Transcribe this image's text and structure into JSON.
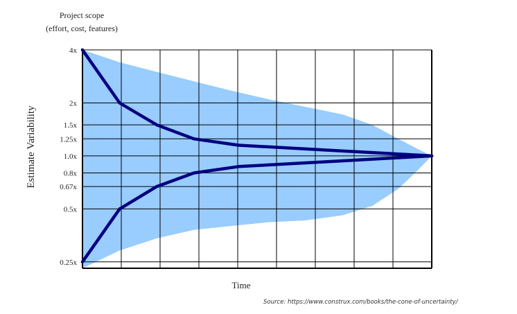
{
  "chart_data": {
    "type": "line",
    "title": "Project scope",
    "subtitle": "(effort, cost, features)",
    "xlabel": "Time",
    "ylabel": "Estimate Variability",
    "y_scale": "log",
    "ylim": [
      0.23,
      4.0
    ],
    "xlim": [
      0,
      9.4
    ],
    "y_ticks": [
      {
        "label": "4x",
        "value": 4.0
      },
      {
        "label": "2x",
        "value": 2.0
      },
      {
        "label": "1.5x",
        "value": 1.5
      },
      {
        "label": "1.25x",
        "value": 1.25
      },
      {
        "label": "1.0x",
        "value": 1.0
      },
      {
        "label": "0.8x",
        "value": 0.8
      },
      {
        "label": "0.67x",
        "value": 0.67
      },
      {
        "label": "0.5x",
        "value": 0.5
      },
      {
        "label": "0.25x",
        "value": 0.25
      }
    ],
    "x_gridlines": 9,
    "grid": true,
    "colors": {
      "envelope": "#99ccff",
      "line": "#000080",
      "grid": "#000000"
    },
    "series": [
      {
        "key": "upper",
        "x": [
          0,
          1,
          2,
          3,
          4.2,
          9.4
        ],
        "values": [
          4.0,
          2.0,
          1.5,
          1.25,
          1.15,
          1.0
        ]
      },
      {
        "key": "lower",
        "x": [
          0,
          1,
          2,
          3,
          4.2,
          9.4
        ],
        "values": [
          0.25,
          0.5,
          0.67,
          0.8,
          0.87,
          1.0
        ]
      }
    ],
    "envelope": {
      "upper": {
        "x": [
          0,
          1,
          2,
          3,
          4,
          5,
          6,
          7,
          7.8,
          8.5,
          9,
          9.4
        ],
        "values": [
          4.0,
          3.4,
          3.0,
          2.65,
          2.35,
          2.1,
          1.9,
          1.72,
          1.5,
          1.25,
          1.1,
          1.0
        ]
      },
      "lower": {
        "x": [
          0,
          1,
          2,
          3,
          4,
          5,
          6,
          7,
          7.8,
          8.5,
          9,
          9.4
        ],
        "values": [
          0.23,
          0.29,
          0.34,
          0.38,
          0.4,
          0.42,
          0.43,
          0.46,
          0.52,
          0.65,
          0.82,
          1.0
        ]
      }
    }
  },
  "source": "Source: https://www.construx.com/books/the-cone-of-uncertainty/"
}
